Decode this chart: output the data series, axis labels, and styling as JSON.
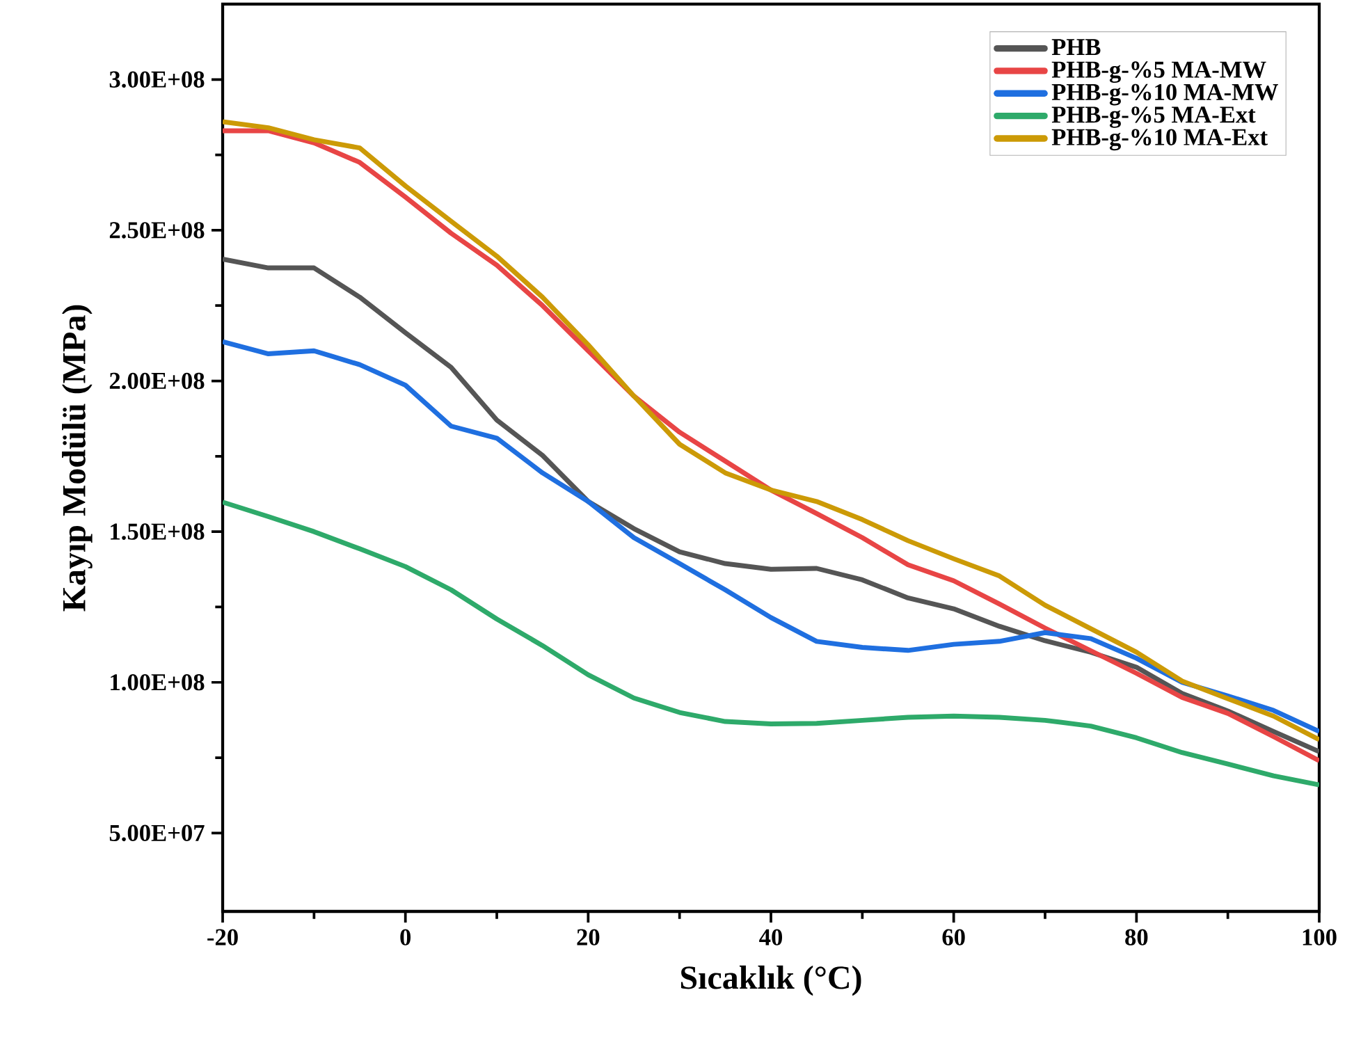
{
  "chart_data": {
    "type": "line",
    "xlabel": "Sıcaklık (°C)",
    "ylabel": "Kayıp Modülü (MPa)",
    "x": [
      -20,
      -15,
      -10,
      -5,
      0,
      5,
      10,
      15,
      20,
      25,
      30,
      35,
      40,
      45,
      50,
      55,
      60,
      65,
      70,
      75,
      80,
      85,
      90,
      95,
      100
    ],
    "series": [
      {
        "name": "PHB",
        "color": "#555555",
        "values": [
          240400000,
          237500000,
          237500000,
          227800000,
          216000000,
          204500000,
          187000000,
          175300000,
          160000000,
          151000000,
          143300000,
          139400000,
          137500000,
          137800000,
          134000000,
          128000000,
          124400000,
          118600000,
          113800000,
          110000000,
          105000000,
          96300000,
          90500000,
          83700000,
          77000000
        ]
      },
      {
        "name": "PHB-g-%5 MA-MW",
        "color": "#e84545",
        "values": [
          283000000,
          283000000,
          279000000,
          272500000,
          261000000,
          249000000,
          238400000,
          225000000,
          210000000,
          195000000,
          183000000,
          173400000,
          163800000,
          156000000,
          148000000,
          139000000,
          133700000,
          126000000,
          118000000,
          110500000,
          103000000,
          95000000,
          89700000,
          82000000,
          74000000
        ]
      },
      {
        "name": "PHB-g-%10 MA-MW",
        "color": "#1f6fe0",
        "values": [
          213000000,
          209000000,
          210000000,
          205400000,
          198600000,
          185000000,
          181000000,
          169500000,
          160000000,
          148000000,
          139400000,
          130700000,
          121500000,
          113600000,
          111600000,
          110600000,
          112600000,
          113600000,
          116500000,
          114500000,
          108000000,
          100000000,
          95500000,
          90700000,
          83700000
        ]
      },
      {
        "name": "PHB-g-%5 MA-Ext",
        "color": "#2eaa6a",
        "values": [
          159800000,
          155000000,
          150000000,
          144300000,
          138400000,
          130700000,
          121000000,
          112200000,
          102500000,
          94800000,
          90000000,
          87000000,
          86200000,
          86400000,
          87400000,
          88400000,
          88800000,
          88400000,
          87400000,
          85500000,
          81600000,
          76700000,
          72900000,
          69000000,
          66000000
        ]
      },
      {
        "name": "PHB-g-%10 MA-Ext",
        "color": "#cc9a06",
        "values": [
          286000000,
          284000000,
          280000000,
          277300000,
          264700000,
          253000000,
          241400000,
          227800000,
          212000000,
          195000000,
          179000000,
          169500000,
          163800000,
          160000000,
          154000000,
          147000000,
          141000000,
          135300000,
          125600000,
          117800000,
          110000000,
          100400000,
          94600000,
          88800000,
          81000000
        ]
      }
    ],
    "xlim": [
      -20,
      100
    ],
    "xticks": [
      -20,
      0,
      20,
      40,
      60,
      80,
      100
    ],
    "ylim": [
      24000000,
      325000000
    ],
    "yticks": [
      {
        "value": 50000000,
        "label": "5.00E+07"
      },
      {
        "value": 100000000,
        "label": "1.00E+08"
      },
      {
        "value": 150000000,
        "label": "1.50E+08"
      },
      {
        "value": 200000000,
        "label": "2.00E+08"
      },
      {
        "value": 250000000,
        "label": "2.50E+08"
      },
      {
        "value": 300000000,
        "label": "3.00E+08"
      }
    ],
    "legend": "top right",
    "grid": false
  }
}
